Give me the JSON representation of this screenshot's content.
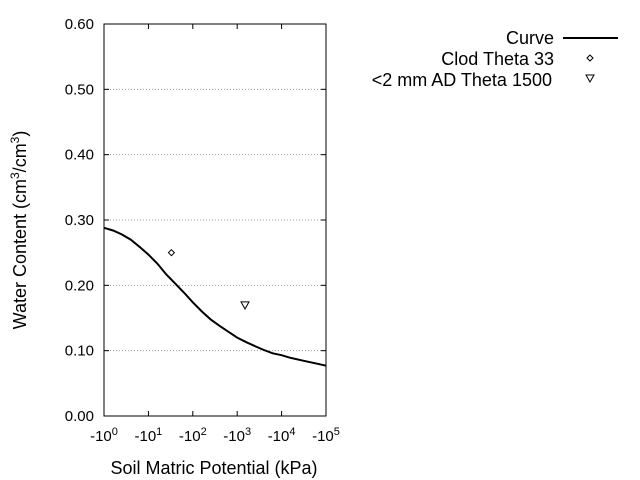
{
  "chart_data": {
    "type": "line",
    "title": "",
    "xlabel": "Soil Matric Potential (kPa)",
    "ylabel_main": "Water Content (cm",
    "ylabel_sup1": "3",
    "ylabel_mid": "/cm",
    "ylabel_sup2": "3",
    "ylabel_end": ")",
    "x_scale": "log (negative)",
    "xlim": [
      -1,
      -100000
    ],
    "ylim": [
      0.0,
      0.6
    ],
    "grid": "horizontal dotted",
    "legend_position": "top-right (outside plot)",
    "x_ticks": [
      {
        "value": -1,
        "base": "-10",
        "exp": "0"
      },
      {
        "value": -10,
        "base": "-10",
        "exp": "1"
      },
      {
        "value": -100,
        "base": "-10",
        "exp": "2"
      },
      {
        "value": -1000,
        "base": "-10",
        "exp": "3"
      },
      {
        "value": -10000,
        "base": "-10",
        "exp": "4"
      },
      {
        "value": -100000,
        "base": "-10",
        "exp": "5"
      }
    ],
    "y_ticks": [
      {
        "value": 0.0,
        "label": "0.00"
      },
      {
        "value": 0.1,
        "label": "0.10"
      },
      {
        "value": 0.2,
        "label": "0.20"
      },
      {
        "value": 0.3,
        "label": "0.30"
      },
      {
        "value": 0.4,
        "label": "0.40"
      },
      {
        "value": 0.5,
        "label": "0.50"
      },
      {
        "value": 0.6,
        "label": "0.60"
      }
    ],
    "series": [
      {
        "name": "Curve",
        "kind": "line",
        "color": "#000000",
        "x": [
          -1,
          -1.6,
          -2.5,
          -4,
          -6.3,
          -10,
          -16,
          -25,
          -40,
          -63,
          -100,
          -160,
          -250,
          -400,
          -630,
          -1000,
          -1600,
          -2500,
          -4000,
          -6300,
          -10000,
          -16000,
          -25000,
          -40000,
          -63000,
          -100000
        ],
        "y": [
          0.288,
          0.284,
          0.278,
          0.27,
          0.259,
          0.247,
          0.233,
          0.217,
          0.203,
          0.189,
          0.174,
          0.16,
          0.148,
          0.138,
          0.129,
          0.12,
          0.113,
          0.107,
          0.101,
          0.096,
          0.093,
          0.089,
          0.086,
          0.083,
          0.08,
          0.077
        ]
      },
      {
        "name": "Clod Theta 33",
        "kind": "scatter",
        "marker": "diamond",
        "color": "#000000",
        "x": [
          -33
        ],
        "y": [
          0.25
        ]
      },
      {
        "name": "<2 mm AD Theta 1500",
        "kind": "scatter",
        "marker": "triangle-down",
        "color": "#000000",
        "x": [
          -1500
        ],
        "y": [
          0.17
        ]
      }
    ]
  }
}
